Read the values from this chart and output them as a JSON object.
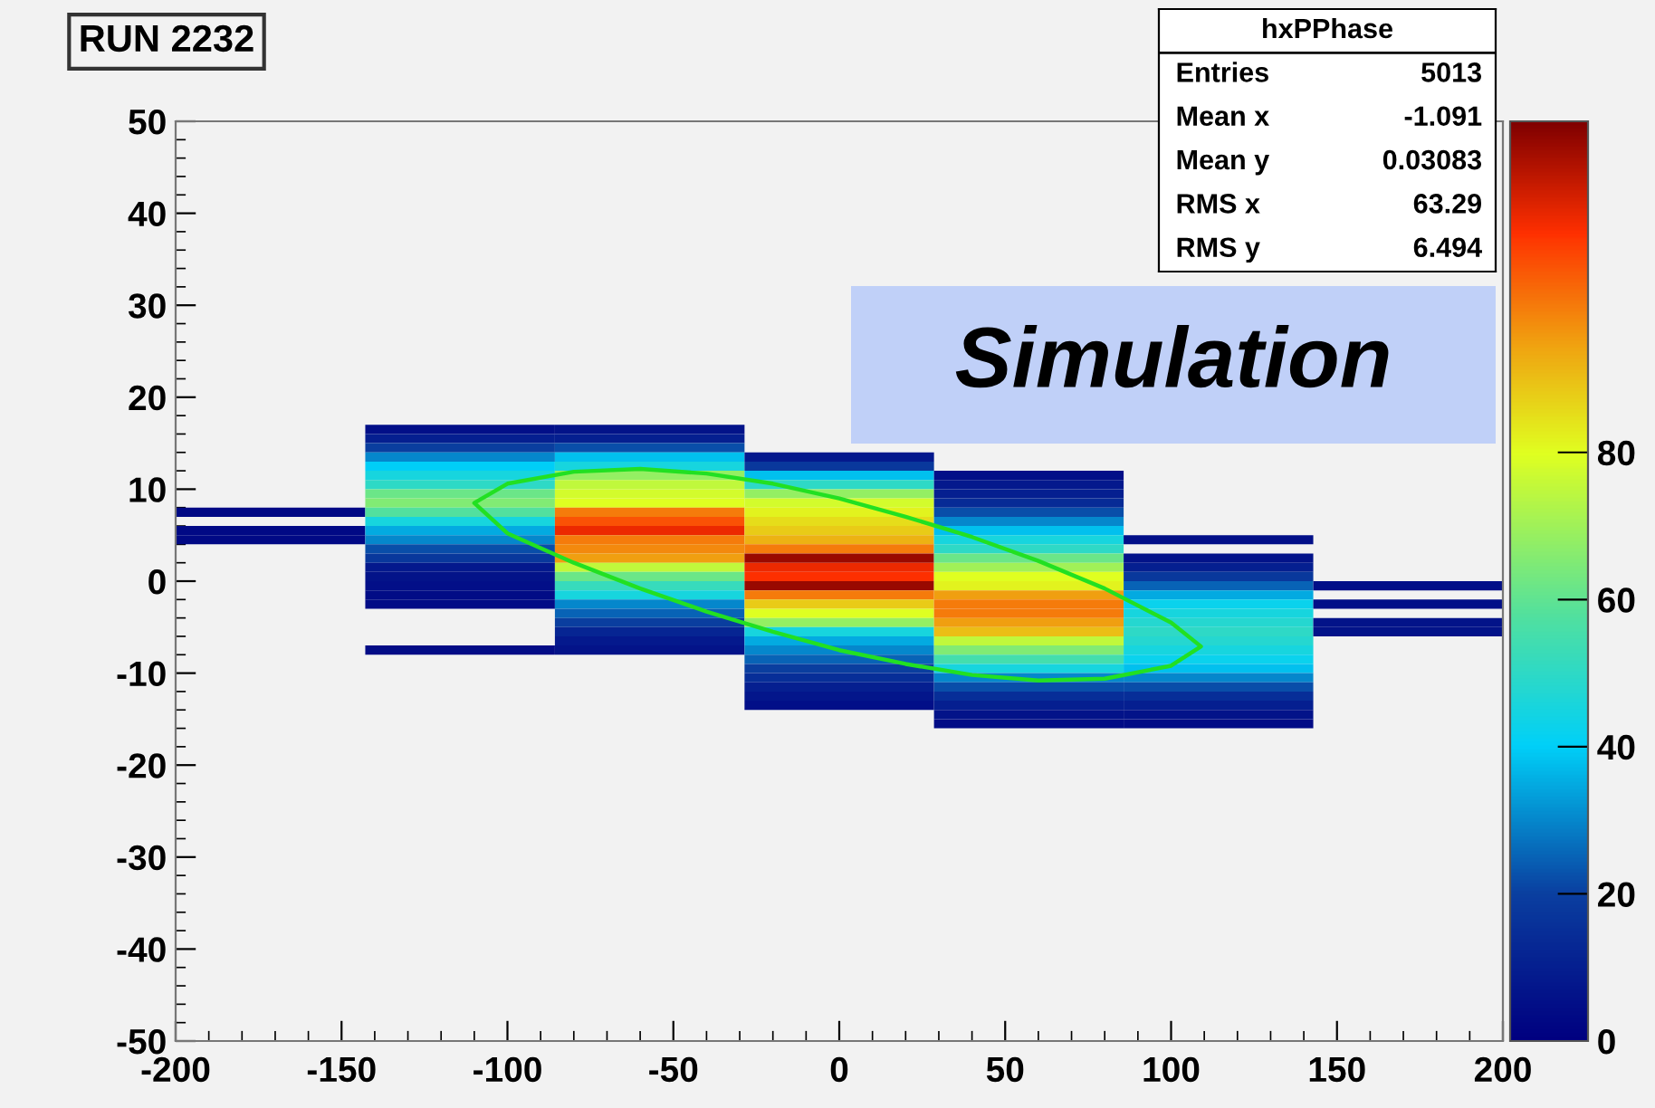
{
  "chart_data": {
    "type": "heatmap",
    "title": "RUN 2232",
    "x": [
      -171.4,
      -114.3,
      -57.1,
      0,
      57.1,
      114.3,
      171.4
    ],
    "y": [
      16.5,
      15.5,
      14.5,
      13.5,
      12.5,
      11.5,
      10.5,
      9.5,
      8.5,
      7.5,
      6.5,
      5.5,
      4.5,
      3.5,
      2.5,
      1.5,
      0.5,
      -0.5,
      -1.5,
      -2.5,
      -3.5,
      -4.5,
      -5.5,
      -6.5,
      -7.5,
      -8.5,
      -9.5,
      -10.5,
      -11.5,
      -12.5,
      -13.5,
      -14.5,
      -15.5
    ],
    "cells": [
      [
        null,
        5,
        6,
        null,
        null,
        null,
        null
      ],
      [
        null,
        10,
        10,
        null,
        null,
        null,
        null
      ],
      [
        null,
        20,
        22,
        null,
        null,
        null,
        null
      ],
      [
        null,
        30,
        38,
        8,
        null,
        null,
        null
      ],
      [
        null,
        40,
        45,
        18,
        null,
        null,
        null
      ],
      [
        null,
        45,
        68,
        38,
        5,
        null,
        null
      ],
      [
        null,
        50,
        75,
        50,
        8,
        null,
        null
      ],
      [
        null,
        62,
        78,
        68,
        10,
        null,
        null
      ],
      [
        null,
        65,
        80,
        78,
        14,
        null,
        null
      ],
      [
        3,
        58,
        100,
        82,
        22,
        null,
        null
      ],
      [
        null,
        45,
        105,
        85,
        30,
        null,
        null
      ],
      [
        3,
        35,
        112,
        88,
        38,
        null,
        null
      ],
      [
        3,
        30,
        100,
        92,
        45,
        5,
        null
      ],
      [
        null,
        22,
        98,
        100,
        50,
        null,
        null
      ],
      [
        null,
        18,
        95,
        122,
        62,
        6,
        null
      ],
      [
        null,
        8,
        75,
        112,
        70,
        10,
        null
      ],
      [
        null,
        6,
        62,
        110,
        80,
        18,
        null
      ],
      [
        null,
        5,
        52,
        122,
        82,
        25,
        5
      ],
      [
        null,
        4,
        45,
        100,
        95,
        35,
        null
      ],
      [
        null,
        4,
        30,
        88,
        100,
        42,
        5
      ],
      [
        null,
        null,
        25,
        80,
        100,
        45,
        null
      ],
      [
        null,
        null,
        20,
        68,
        95,
        48,
        6
      ],
      [
        null,
        null,
        12,
        45,
        90,
        50,
        6
      ],
      [
        null,
        null,
        8,
        35,
        75,
        48,
        null
      ],
      [
        null,
        4,
        6,
        30,
        65,
        45,
        null
      ],
      [
        null,
        null,
        null,
        25,
        55,
        42,
        null
      ],
      [
        null,
        null,
        null,
        20,
        45,
        38,
        null
      ],
      [
        null,
        null,
        null,
        15,
        30,
        30,
        null
      ],
      [
        null,
        null,
        null,
        10,
        22,
        22,
        null
      ],
      [
        null,
        null,
        null,
        7,
        15,
        15,
        null
      ],
      [
        null,
        null,
        null,
        5,
        10,
        10,
        null
      ],
      [
        null,
        null,
        null,
        null,
        6,
        6,
        null
      ],
      [
        null,
        null,
        null,
        null,
        4,
        4,
        null
      ]
    ],
    "clim": [
      0,
      125
    ],
    "cticks": [
      0,
      20,
      40,
      60,
      80
    ],
    "xlim": [
      -200,
      200
    ],
    "xticks": [
      -200,
      -150,
      -100,
      -50,
      0,
      50,
      100,
      150,
      200
    ],
    "ylim": [
      -50,
      50
    ],
    "yticks": [
      -50,
      -40,
      -30,
      -20,
      -10,
      0,
      10,
      20,
      30,
      40,
      50
    ],
    "annotations": [
      "hxPPhase",
      "Entries 5013",
      "Mean x -1.091",
      "Mean y 0.03083",
      "RMS x 63.29",
      "RMS y 6.494",
      "Simulation"
    ]
  }
}
